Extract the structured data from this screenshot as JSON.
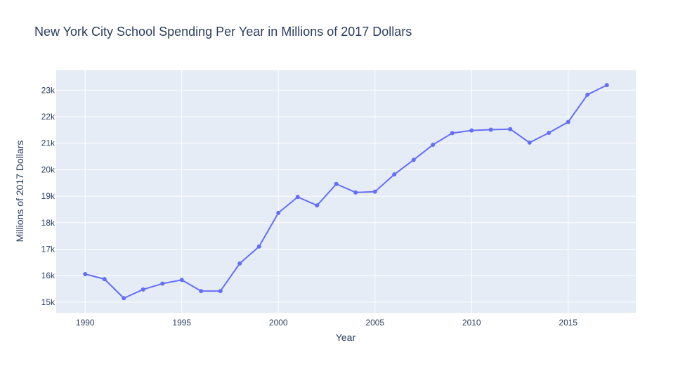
{
  "chart_data": {
    "type": "line",
    "title": "New York City School Spending Per Year in Millions of 2017 Dollars",
    "xlabel": "Year",
    "ylabel": "Millions of 2017 Dollars",
    "xlim": [
      1988.5,
      2018.5
    ],
    "ylim": [
      14600,
      23750
    ],
    "x_ticks": [
      1990,
      1995,
      2000,
      2005,
      2010,
      2015
    ],
    "y_ticks": [
      15000,
      16000,
      17000,
      18000,
      19000,
      20000,
      21000,
      22000,
      23000
    ],
    "y_tick_labels": [
      "15k",
      "16k",
      "17k",
      "18k",
      "19k",
      "20k",
      "21k",
      "22k",
      "23k"
    ],
    "grid": true,
    "series": [
      {
        "x": [
          1990,
          1991,
          1992,
          1993,
          1994,
          1995,
          1996,
          1997,
          1998,
          1999,
          2000,
          2001,
          2002,
          2003,
          2004,
          2005,
          2006,
          2007,
          2008,
          2009,
          2010,
          2011,
          2012,
          2013,
          2014,
          2015,
          2016,
          2017
        ],
        "y": [
          16060,
          15870,
          15150,
          15480,
          15700,
          15840,
          15420,
          15420,
          16460,
          17100,
          18370,
          18970,
          18650,
          19460,
          19140,
          19170,
          19820,
          20370,
          20940,
          21380,
          21480,
          21510,
          21530,
          21020,
          21390,
          21800,
          22830,
          23190
        ],
        "color": "#636efa"
      }
    ]
  }
}
